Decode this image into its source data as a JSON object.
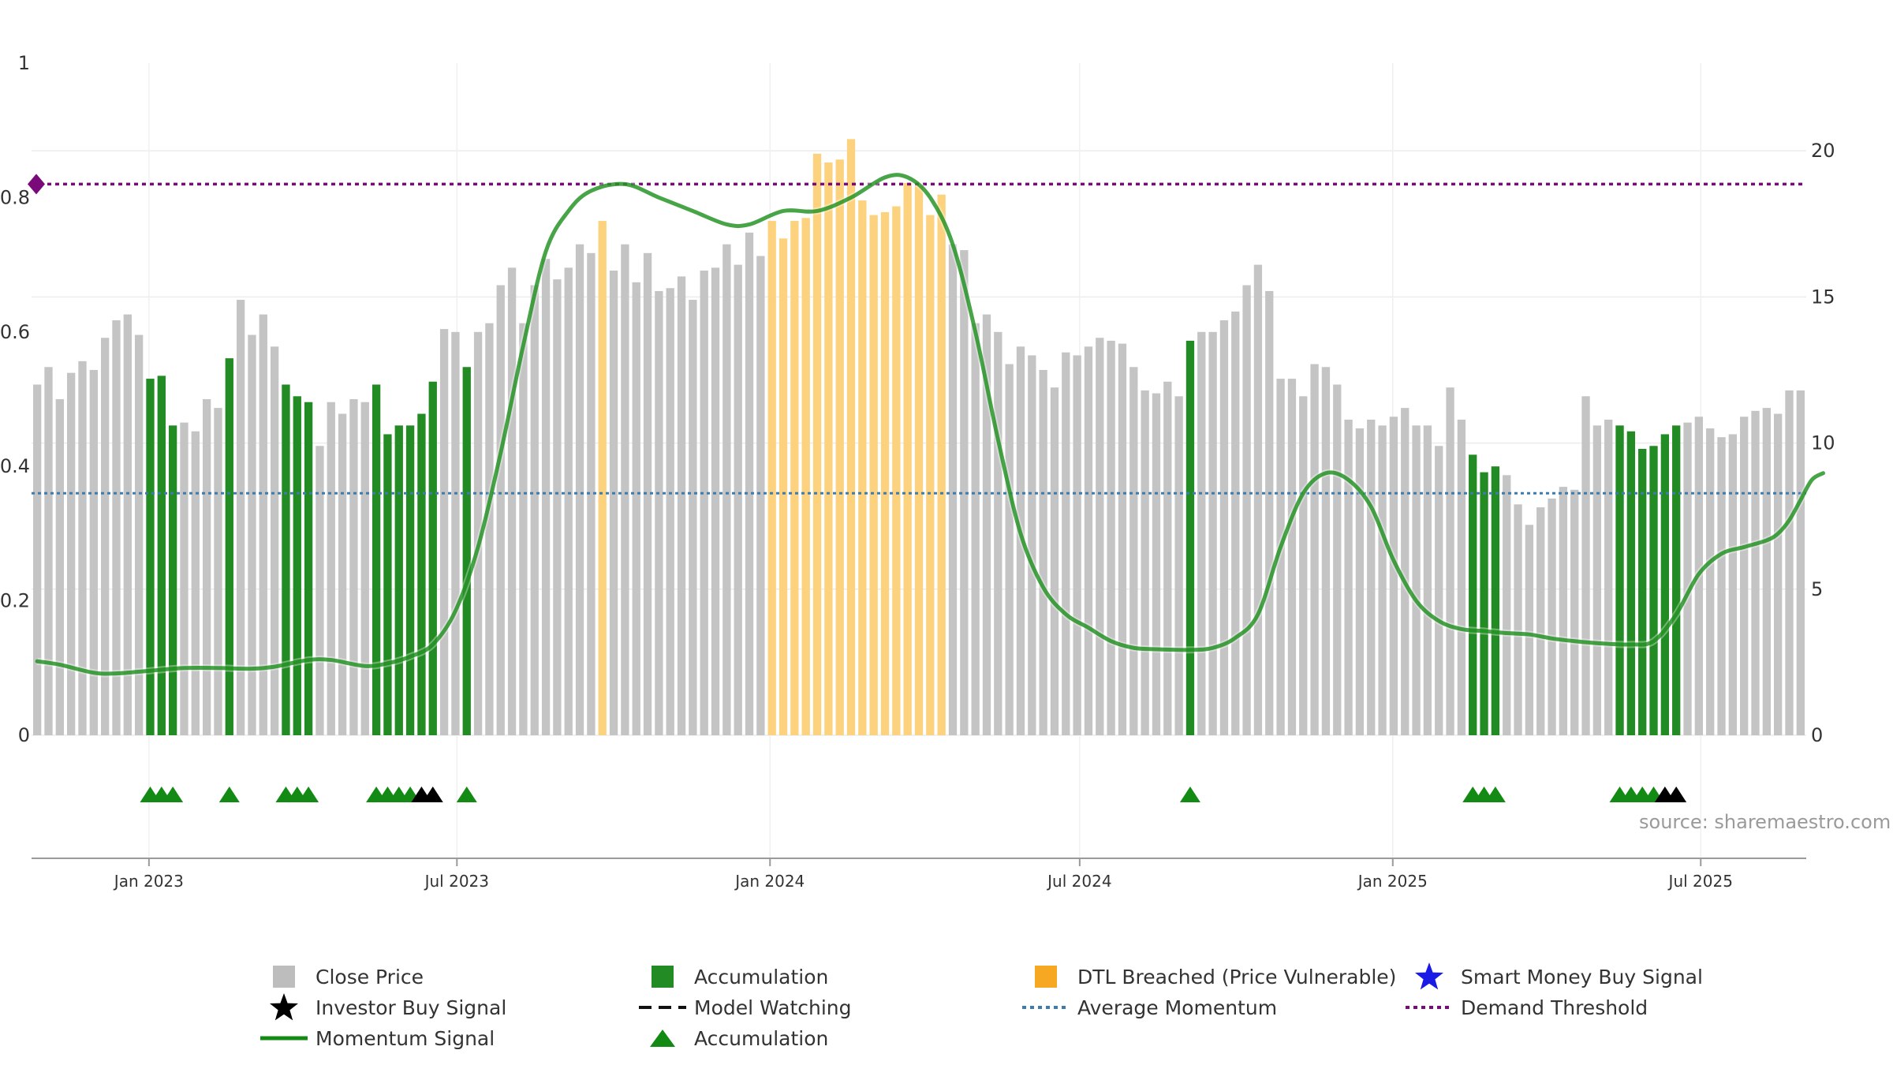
{
  "chart_data": {
    "type": "bar",
    "source_text": "source: sharemaestro.com",
    "x_range": [
      "2022-10-24",
      "2025-09-01"
    ],
    "x_ticks": [
      {
        "date": "2023-01-01",
        "label": "Jan 2023"
      },
      {
        "date": "2023-07-01",
        "label": "Jul 2023"
      },
      {
        "date": "2024-01-01",
        "label": "Jan 2024"
      },
      {
        "date": "2024-07-01",
        "label": "Jul 2024"
      },
      {
        "date": "2025-01-01",
        "label": "Jan 2025"
      },
      {
        "date": "2025-07-01",
        "label": "Jul 2025"
      }
    ],
    "y_left": {
      "range": [
        0,
        1
      ],
      "ticks": [
        0,
        0.2,
        0.4,
        0.6,
        0.8,
        1
      ],
      "tick_labels": [
        "0",
        "0.2",
        "0.4",
        "0.6",
        "0.8",
        "1"
      ]
    },
    "y_right": {
      "range": [
        0,
        23
      ],
      "ticks": [
        0,
        5,
        10,
        15,
        20
      ],
      "tick_labels": [
        "0",
        "5",
        "10",
        "15",
        "20"
      ]
    },
    "grid": true,
    "demand_threshold": 0.82,
    "average_momentum": 0.36,
    "bar_colors": {
      "close": "#c4c4c4",
      "accumulation": "#238b23",
      "dtl": "#fcd27f"
    },
    "close_price": [
      12.0,
      12.6,
      11.5,
      12.4,
      12.8,
      12.5,
      13.6,
      14.2,
      14.4,
      13.7,
      12.2,
      12.3,
      10.6,
      10.7,
      10.4,
      11.5,
      11.2,
      12.9,
      14.9,
      13.7,
      14.4,
      13.3,
      12.0,
      11.6,
      11.4,
      9.9,
      11.4,
      11.0,
      11.5,
      11.4,
      12.0,
      10.3,
      10.6,
      10.6,
      11.0,
      12.1,
      13.9,
      13.8,
      12.6,
      13.8,
      14.1,
      15.4,
      16.0,
      14.1,
      15.4,
      16.3,
      15.6,
      16.0,
      16.8,
      16.5,
      17.6,
      15.9,
      16.8,
      15.5,
      16.5,
      15.2,
      15.3,
      15.7,
      14.9,
      15.9,
      16.0,
      16.8,
      16.1,
      17.2,
      16.4,
      17.6,
      17.0,
      17.6,
      17.7,
      19.9,
      19.6,
      19.7,
      20.4,
      18.3,
      17.8,
      17.9,
      18.1,
      18.9,
      18.8,
      17.8,
      18.5,
      16.8,
      16.6,
      14.1,
      14.4,
      13.8,
      12.7,
      13.3,
      13.0,
      12.5,
      11.9,
      13.1,
      13.0,
      13.3,
      13.6,
      13.5,
      13.4,
      12.6,
      11.8,
      11.7,
      12.1,
      11.6,
      13.5,
      13.8,
      13.8,
      14.2,
      14.5,
      15.4,
      16.1,
      15.2,
      12.2,
      12.2,
      11.6,
      12.7,
      12.6,
      12.0,
      10.8,
      10.5,
      10.8,
      10.6,
      10.9,
      11.2,
      10.6,
      10.6,
      9.9,
      11.9,
      10.8,
      9.6,
      9.0,
      9.2,
      8.9,
      7.9,
      7.2,
      7.8,
      8.1,
      8.5,
      8.4,
      11.6,
      10.6,
      10.8,
      10.6,
      10.4,
      9.8,
      9.9,
      10.3,
      10.6,
      10.7,
      10.9,
      10.5,
      10.2,
      10.3,
      10.9,
      11.1,
      11.2,
      11.0,
      11.8,
      11.8
    ],
    "accumulation_indices": [
      10,
      11,
      12,
      17,
      22,
      23,
      24,
      30,
      31,
      32,
      33,
      34,
      35,
      38,
      102,
      127,
      128,
      129,
      140,
      141,
      142,
      143,
      144,
      145
    ],
    "dtl_breached_indices": [
      50,
      65,
      66,
      67,
      68,
      69,
      70,
      71,
      72,
      73,
      74,
      75,
      76,
      77,
      78,
      79,
      80
    ],
    "momentum_signal": [
      [
        0,
        0.11
      ],
      [
        2,
        0.105
      ],
      [
        5,
        0.093
      ],
      [
        7,
        0.092
      ],
      [
        10,
        0.096
      ],
      [
        13,
        0.1
      ],
      [
        16,
        0.1
      ],
      [
        19,
        0.099
      ],
      [
        21,
        0.102
      ],
      [
        24,
        0.112
      ],
      [
        26,
        0.112
      ],
      [
        29,
        0.103
      ],
      [
        31,
        0.107
      ],
      [
        33,
        0.117
      ],
      [
        35,
        0.135
      ],
      [
        37,
        0.185
      ],
      [
        39,
        0.28
      ],
      [
        41,
        0.42
      ],
      [
        43,
        0.58
      ],
      [
        45,
        0.72
      ],
      [
        47,
        0.78
      ],
      [
        49,
        0.81
      ],
      [
        52,
        0.82
      ],
      [
        55,
        0.8
      ],
      [
        58,
        0.78
      ],
      [
        61,
        0.76
      ],
      [
        63,
        0.76
      ],
      [
        66,
        0.78
      ],
      [
        69,
        0.78
      ],
      [
        72,
        0.8
      ],
      [
        75,
        0.83
      ],
      [
        77,
        0.83
      ],
      [
        79,
        0.8
      ],
      [
        81,
        0.73
      ],
      [
        83,
        0.6
      ],
      [
        85,
        0.44
      ],
      [
        87,
        0.3
      ],
      [
        89,
        0.22
      ],
      [
        91,
        0.18
      ],
      [
        93,
        0.16
      ],
      [
        95,
        0.14
      ],
      [
        97,
        0.13
      ],
      [
        99,
        0.128
      ],
      [
        102,
        0.127
      ],
      [
        104,
        0.13
      ],
      [
        106,
        0.145
      ],
      [
        108,
        0.18
      ],
      [
        110,
        0.28
      ],
      [
        112,
        0.36
      ],
      [
        114,
        0.39
      ],
      [
        116,
        0.38
      ],
      [
        118,
        0.34
      ],
      [
        120,
        0.26
      ],
      [
        122,
        0.2
      ],
      [
        124,
        0.17
      ],
      [
        126,
        0.158
      ],
      [
        128,
        0.155
      ],
      [
        130,
        0.152
      ],
      [
        132,
        0.15
      ],
      [
        134,
        0.144
      ],
      [
        136,
        0.14
      ],
      [
        138,
        0.137
      ],
      [
        141,
        0.135
      ],
      [
        143,
        0.14
      ],
      [
        145,
        0.18
      ],
      [
        147,
        0.24
      ],
      [
        149,
        0.27
      ],
      [
        151,
        0.28
      ],
      [
        153,
        0.29
      ],
      [
        154,
        0.3
      ],
      [
        155,
        0.32
      ],
      [
        156,
        0.35
      ],
      [
        157,
        0.38
      ],
      [
        158,
        0.39
      ]
    ],
    "triangle_markers": [
      {
        "index": 10,
        "color": "green"
      },
      {
        "index": 11,
        "color": "green"
      },
      {
        "index": 12,
        "color": "green"
      },
      {
        "index": 17,
        "color": "green"
      },
      {
        "index": 22,
        "color": "green"
      },
      {
        "index": 23,
        "color": "green"
      },
      {
        "index": 24,
        "color": "green"
      },
      {
        "index": 30,
        "color": "green"
      },
      {
        "index": 31,
        "color": "green"
      },
      {
        "index": 32,
        "color": "green"
      },
      {
        "index": 33,
        "color": "green"
      },
      {
        "index": 34,
        "color": "black"
      },
      {
        "index": 35,
        "color": "black"
      },
      {
        "index": 38,
        "color": "green"
      },
      {
        "index": 102,
        "color": "green"
      },
      {
        "index": 127,
        "color": "green"
      },
      {
        "index": 128,
        "color": "green"
      },
      {
        "index": 129,
        "color": "green"
      },
      {
        "index": 140,
        "color": "green"
      },
      {
        "index": 141,
        "color": "green"
      },
      {
        "index": 142,
        "color": "green"
      },
      {
        "index": 143,
        "color": "green"
      },
      {
        "index": 144,
        "color": "black"
      },
      {
        "index": 145,
        "color": "black"
      }
    ],
    "legend": [
      {
        "label": "Close Price",
        "symbol": "square-gray"
      },
      {
        "label": "Accumulation",
        "symbol": "square-green"
      },
      {
        "label": "DTL Breached (Price Vulnerable)",
        "symbol": "square-orange"
      },
      {
        "label": "Smart Money Buy Signal",
        "symbol": "star-blue"
      },
      {
        "label": "Investor Buy Signal",
        "symbol": "star-black"
      },
      {
        "label": "Model Watching",
        "symbol": "dash-black"
      },
      {
        "label": "Average Momentum",
        "symbol": "dotted-blue"
      },
      {
        "label": "Demand Threshold",
        "symbol": "dotted-purple"
      },
      {
        "label": "Momentum Signal",
        "symbol": "line-green"
      },
      {
        "label": "Accumulation",
        "symbol": "triangle-green"
      }
    ]
  }
}
